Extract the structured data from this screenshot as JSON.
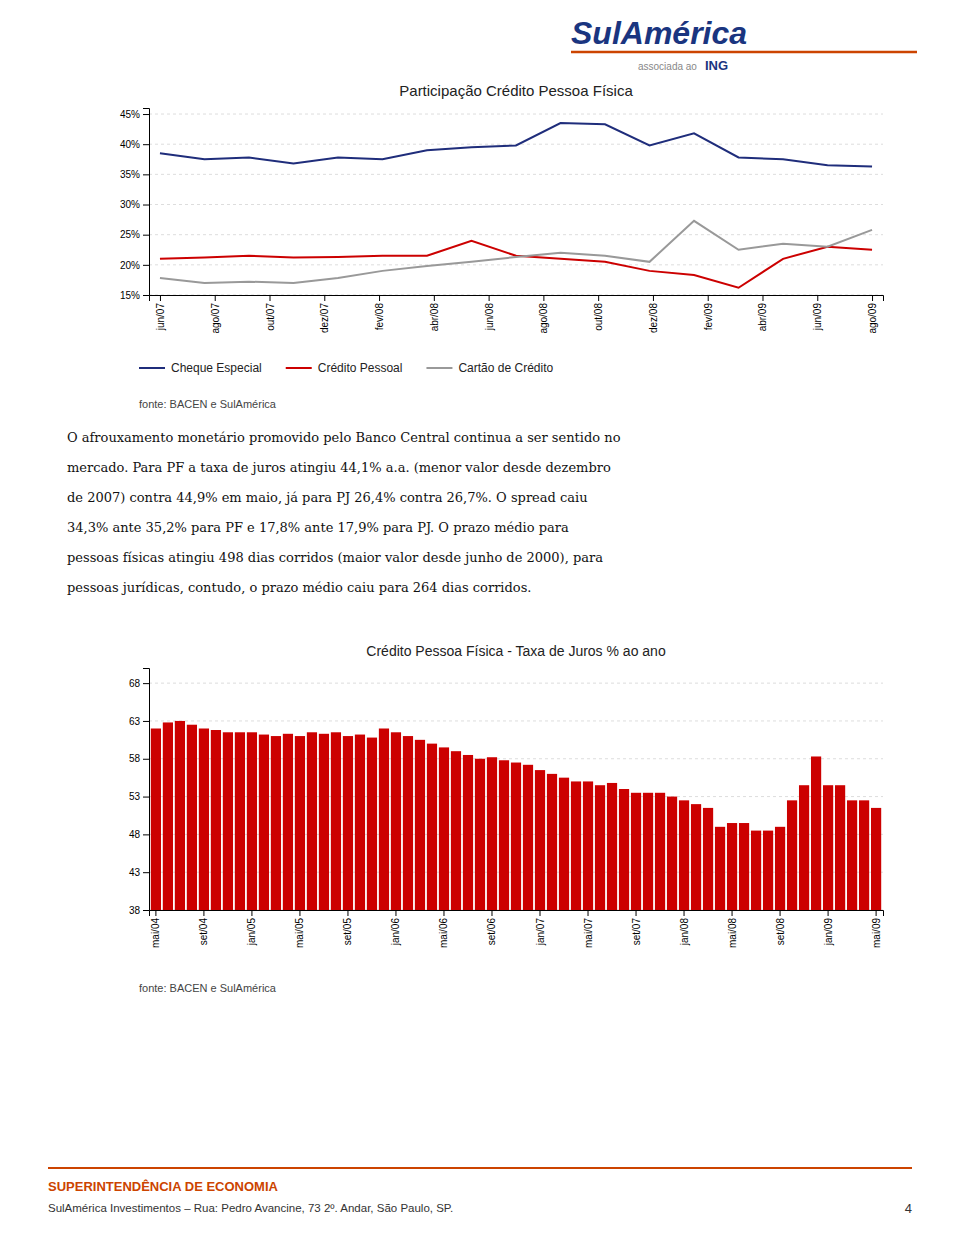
{
  "chart_data": [
    {
      "type": "line",
      "title": "Participação Crédito Pessoa Física",
      "x": [
        0,
        0.8125,
        1.625,
        2.4375,
        3.25,
        4.0625,
        4.875,
        5.6875,
        6.5,
        7.3125,
        8.125,
        8.9375,
        9.75,
        10.5625,
        11.375,
        12.1875,
        13
      ],
      "xlim": [
        -0.2,
        13.2
      ],
      "xticks": [
        {
          "value": 0,
          "label": "jun/07"
        },
        {
          "value": 1,
          "label": "ago/07"
        },
        {
          "value": 2,
          "label": "out/07"
        },
        {
          "value": 3,
          "label": "dez/07"
        },
        {
          "value": 4,
          "label": "fev/08"
        },
        {
          "value": 5,
          "label": "abr/08"
        },
        {
          "value": 6,
          "label": "jun/08"
        },
        {
          "value": 7,
          "label": "ago/08"
        },
        {
          "value": 8,
          "label": "out/08"
        },
        {
          "value": 9,
          "label": "dez/08"
        },
        {
          "value": 10,
          "label": "fev/09"
        },
        {
          "value": 11,
          "label": "abr/09"
        },
        {
          "value": 12,
          "label": "jun/09"
        },
        {
          "value": 13,
          "label": "ago/09"
        }
      ],
      "ylim": [
        15,
        46
      ],
      "yticks": [
        {
          "value": 15,
          "label": "15%"
        },
        {
          "value": 20,
          "label": "20%"
        },
        {
          "value": 25,
          "label": "25%"
        },
        {
          "value": 30,
          "label": "30%"
        },
        {
          "value": 35,
          "label": "35%"
        },
        {
          "value": 40,
          "label": "40%"
        },
        {
          "value": 45,
          "label": "45%"
        }
      ],
      "series": [
        {
          "name": "Cheque Especial",
          "color": "#1f2d7b",
          "values": [
            38.5,
            37.5,
            37.8,
            36.8,
            37.8,
            37.5,
            39.0,
            39.5,
            39.8,
            43.5,
            43.3,
            39.8,
            41.8,
            37.8,
            37.5,
            36.5,
            36.3
          ]
        },
        {
          "name": "Crédito Pessoal",
          "color": "#cc0000",
          "values": [
            21.0,
            21.2,
            21.5,
            21.2,
            21.3,
            21.5,
            21.5,
            24.0,
            21.5,
            21.0,
            20.5,
            19.0,
            18.3,
            16.2,
            21.0,
            23.0,
            22.5
          ]
        },
        {
          "name": "Cartão de Crédito",
          "color": "#999999",
          "values": [
            17.8,
            17.0,
            17.2,
            17.0,
            17.8,
            19.0,
            19.8,
            20.5,
            21.3,
            22.0,
            21.5,
            20.5,
            27.3,
            22.5,
            23.5,
            23.0,
            25.8
          ]
        }
      ],
      "grid": true,
      "legend": "bottom",
      "annotations": [
        "fonte: BACEN e SulAmérica"
      ]
    },
    {
      "type": "bar",
      "title": "Crédito Pessoa Física - Taxa de Juros % ao ano",
      "categories": [
        "mai/04",
        null,
        null,
        null,
        "set/04",
        null,
        null,
        null,
        "jan/05",
        null,
        null,
        null,
        "mai/05",
        null,
        null,
        null,
        "set/05",
        null,
        null,
        null,
        "jan/06",
        null,
        null,
        null,
        "mai/06",
        null,
        null,
        null,
        "set/06",
        null,
        null,
        null,
        "jan/07",
        null,
        null,
        null,
        "mai/07",
        null,
        null,
        null,
        "set/07",
        null,
        null,
        null,
        "jan/08",
        null,
        null,
        null,
        "mai/08",
        null,
        null,
        null,
        "set/08",
        null,
        null,
        null,
        "jan/09",
        null,
        null,
        null,
        "mai/09"
      ],
      "values": [
        62.0,
        62.8,
        63.0,
        62.5,
        62.0,
        61.8,
        61.5,
        61.5,
        61.5,
        61.2,
        61.0,
        61.3,
        61.0,
        61.5,
        61.3,
        61.5,
        61.0,
        61.2,
        60.8,
        62.0,
        61.5,
        61.0,
        60.5,
        60.0,
        59.5,
        59.0,
        58.5,
        58.0,
        58.2,
        57.8,
        57.5,
        57.2,
        56.5,
        56.0,
        55.5,
        55.0,
        55.0,
        54.5,
        54.8,
        54.0,
        53.5,
        53.5,
        53.5,
        53.0,
        52.5,
        52.0,
        51.5,
        49.0,
        49.5,
        49.5,
        48.5,
        48.5,
        49.0,
        52.5,
        54.5,
        58.3,
        54.5,
        54.5,
        52.5,
        52.5,
        51.5
      ],
      "color": "#cc0000",
      "ylim": [
        38,
        70
      ],
      "yticks": [
        38,
        43,
        48,
        53,
        58,
        63,
        68
      ],
      "grid": true,
      "annotations": [
        "fonte: BACEN e SulAmérica"
      ]
    }
  ],
  "body_lines": [
    "O afrouxamento monetário promovido pelo Banco Central continua a ser sentido no",
    "mercado. Para PF a taxa de juros atingiu 44,1% a.a. (menor valor desde dezembro",
    "de 2007) contra 44,9% em maio, já para PJ 26,4% contra 26,7%. O spread caiu",
    "34,3% ante 35,2% para PF e 17,8% ante 17,9% para PJ. O prazo médio para",
    "pessoas físicas atingiu 498 dias corridos (maior valor desde junho de 2000), para",
    "pessoas jurídicas, contudo, o prazo médio caiu para 264 dias corridos."
  ],
  "footer": {
    "title": "SUPERINTENDÊNCIA DE ECONOMIA",
    "text": "SulAmérica Investimentos – Rua: Pedro Avancine, 73 2º. Andar, São Paulo, SP.",
    "page": "4",
    "color": "#cc4400"
  },
  "logo": {
    "text": "SulAmérica",
    "color": "#1a3580",
    "tagline": "associada ao",
    "partner": "ING"
  }
}
